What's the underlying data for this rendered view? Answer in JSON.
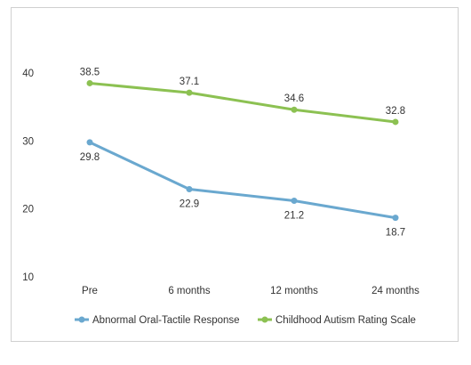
{
  "chart_data": {
    "type": "line",
    "categories": [
      "Pre",
      "6 months",
      "12 months",
      "24 months"
    ],
    "series": [
      {
        "name": "Abnormal Oral-Tactile Response",
        "values": [
          29.8,
          22.9,
          21.2,
          18.7
        ],
        "color": "#6aa8cf",
        "labels": [
          "29.8",
          "22.9",
          "21.2",
          "18.7"
        ]
      },
      {
        "name": "Childhood Autism Rating Scale",
        "values": [
          38.5,
          37.1,
          34.6,
          32.8
        ],
        "color": "#8cc152",
        "labels": [
          "38.5",
          "37.1",
          "34.6",
          "32.8"
        ]
      }
    ],
    "yticks": [
      "10",
      "20",
      "30",
      "40"
    ],
    "ylim": [
      10,
      43
    ],
    "grid": false,
    "legend": "bottom"
  }
}
